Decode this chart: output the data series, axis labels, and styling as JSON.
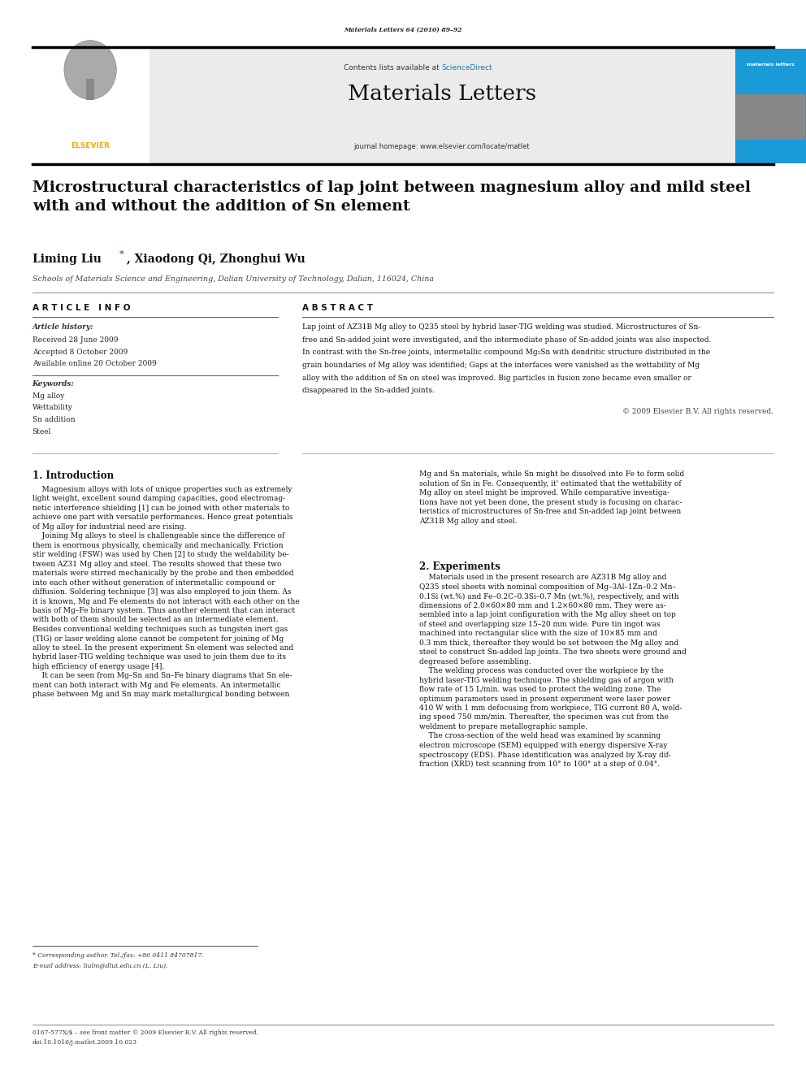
{
  "page_width": 9.92,
  "page_height": 13.23,
  "bg_color": "#ffffff",
  "journal_header_bg": "#e8e8e8",
  "journal_header_text": "Materials Letters",
  "journal_subtitle": "journal homepage: www.elsevier.com/locate/matlet",
  "journal_contents_text": "Contents lists available at ScienceDirect",
  "sciencedirect_color": "#1a77b5",
  "top_journal_text": "Materials Letters 64 (2010) 89–92",
  "elsevier_color": "#f5a800",
  "materials_letters_banner_bg": "#1a9ad7",
  "paper_title": "Microstructural characteristics of lap joint between magnesium alloy and mild steel\nwith and without the addition of Sn element",
  "authors": "Liming Liu *, Xiaodong Qi, Zhonghui Wu",
  "affiliation": "Schools of Materials Science and Engineering, Dalian University of Technology, Dalian, 116024, China",
  "article_info_title": "A R T I C L E   I N F O",
  "abstract_title": "A B S T R A C T",
  "article_history_label": "Article history:",
  "received": "Received 28 June 2009",
  "accepted": "Accepted 8 October 2009",
  "available": "Available online 20 October 2009",
  "keywords_label": "Keywords:",
  "keywords": [
    "Mg alloy",
    "Wettability",
    "Sn addition",
    "Steel"
  ],
  "copyright_text": "© 2009 Elsevier B.V. All rights reserved.",
  "section1_title": "1. Introduction",
  "section2_title": "2. Experiments",
  "footnote_corresponding": "* Corresponding author. Tel./fax: +86 0411 84707817.",
  "footnote_email": "E-mail address: liulm@dlut.edu.cn (L. Liu).",
  "footer_left": "0167-577X/$ – see front matter © 2009 Elsevier B.V. All rights reserved.",
  "footer_doi": "doi:10.1016/j.matlet.2009.10.023"
}
